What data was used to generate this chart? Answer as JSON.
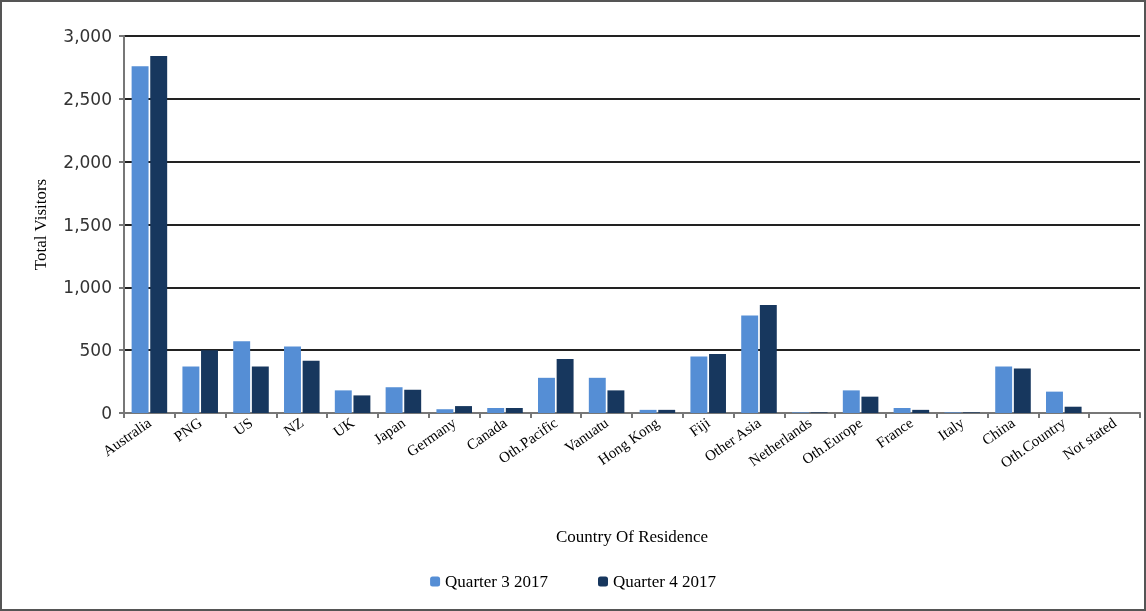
{
  "chart_data": {
    "type": "bar",
    "xlabel": "Country Of Residence",
    "ylabel": "Total Visitors",
    "categories": [
      "Australia",
      "PNG",
      "US",
      "NZ",
      "UK",
      "Japan",
      "Germany",
      "Canada",
      "Oth.Pacific",
      "Vanuatu",
      "Hong Kong",
      "Fiji",
      "Other Asia",
      "Netherlands",
      "Oth.Europe",
      "France",
      "Italy",
      "China",
      "Oth.Country",
      "Not stated"
    ],
    "series": [
      {
        "name": "Quarter 3 2017",
        "color": "#558ed5",
        "values": [
          2760,
          370,
          570,
          530,
          180,
          205,
          30,
          40,
          280,
          280,
          25,
          450,
          775,
          5,
          180,
          40,
          5,
          370,
          170,
          0
        ]
      },
      {
        "name": "Quarter 4 2017",
        "color": "#17375e",
        "values": [
          2840,
          500,
          370,
          415,
          140,
          185,
          55,
          40,
          430,
          180,
          25,
          470,
          860,
          5,
          130,
          25,
          5,
          355,
          50,
          0
        ]
      }
    ],
    "ylim": [
      0,
      3000
    ],
    "yticks": [
      0,
      500,
      {
        "value": 1000,
        "label": "1,000"
      },
      {
        "value": 1500,
        "label": "1,500"
      },
      {
        "value": 2000,
        "label": "2,000"
      },
      {
        "value": 2500,
        "label": "2,500"
      },
      {
        "value": 3000,
        "label": "3,000"
      }
    ],
    "grid": "y",
    "legend": "bottom"
  }
}
